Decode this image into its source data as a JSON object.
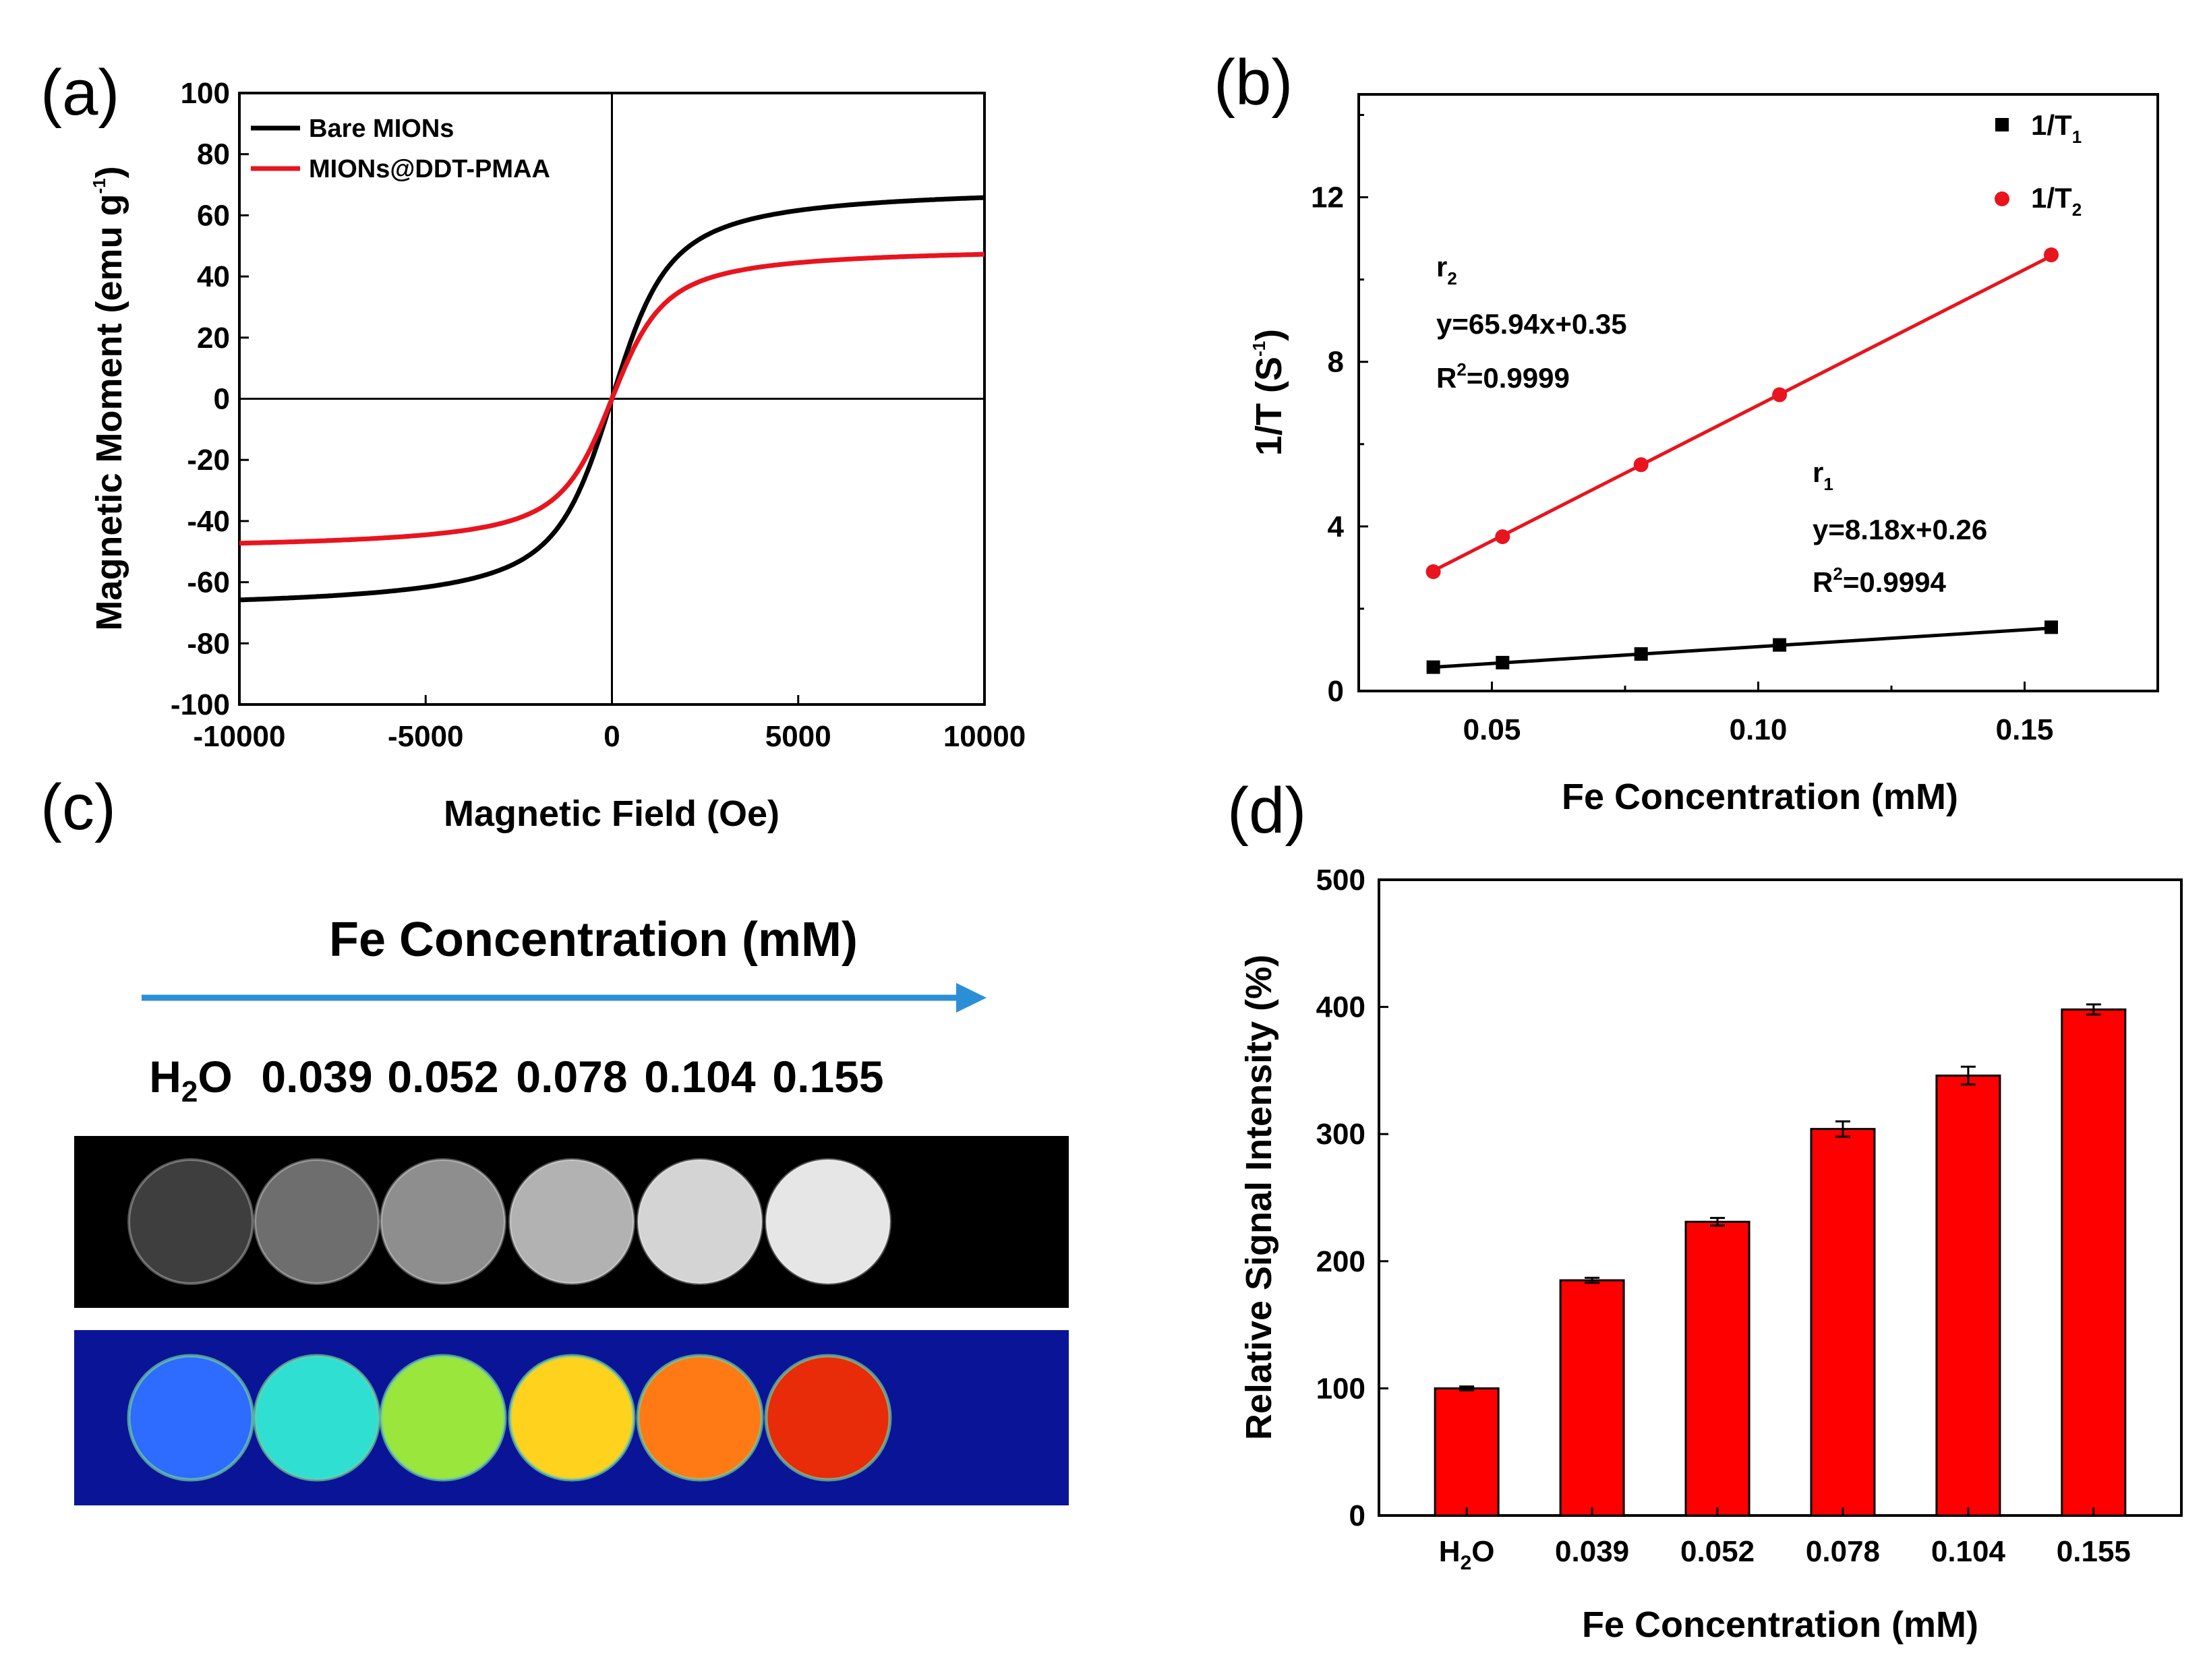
{
  "panels": {
    "a": "(a)",
    "b": "(b)",
    "c": "(c)",
    "d": "(d)"
  },
  "chart_data": [
    {
      "id": "a",
      "type": "line",
      "title": "",
      "xlabel": "Magnetic Field (Oe)",
      "ylabel": "Magnetic Moment (emu g",
      "ylabel_sup": "-1",
      "ylabel_end": ")",
      "xlim": [
        -10000,
        10000
      ],
      "ylim": [
        -100,
        100
      ],
      "xticks": [
        -10000,
        -5000,
        0,
        5000,
        10000
      ],
      "yticks": [
        -100,
        -80,
        -60,
        -40,
        -20,
        0,
        20,
        40,
        60,
        80,
        100
      ],
      "legend_position": "top-left",
      "series": [
        {
          "name": "Bare MIONs",
          "color": "#000000",
          "ms": 70,
          "h0": 600,
          "curve": "langevin"
        },
        {
          "name": "MIONs@DDT-PMAA",
          "color": "#e8141e",
          "ms": 50,
          "h0": 550,
          "curve": "langevin"
        }
      ]
    },
    {
      "id": "b",
      "type": "scatter",
      "xlabel": "Fe Concentration (mM)",
      "ylabel": "1/T (S",
      "ylabel_sup": "-1",
      "ylabel_end": ")",
      "xlim": [
        0.025,
        0.175
      ],
      "ylim": [
        0,
        14.5
      ],
      "xticks": [
        0.05,
        0.1,
        0.15
      ],
      "xtick_labels": [
        "0.05",
        "0.10",
        "0.15"
      ],
      "yticks": [
        0,
        4,
        8,
        12
      ],
      "legend_position": "top-right",
      "series": [
        {
          "name": "1/T",
          "sub": "1",
          "marker": "square",
          "color": "#000000",
          "x": [
            0.039,
            0.052,
            0.078,
            0.104,
            0.155
          ],
          "y": [
            0.58,
            0.69,
            0.9,
            1.12,
            1.55
          ],
          "fit": {
            "slope": 8.18,
            "intercept": 0.26
          }
        },
        {
          "name": "1/T",
          "sub": "2",
          "marker": "circle",
          "color": "#e8141e",
          "x": [
            0.039,
            0.052,
            0.078,
            0.104,
            0.155
          ],
          "y": [
            2.9,
            3.75,
            5.5,
            7.2,
            10.6
          ],
          "fit": {
            "slope": 65.94,
            "intercept": 0.35
          }
        }
      ],
      "annotations": {
        "r2": {
          "r": "r",
          "sub": "2",
          "eq": "y=65.94x+0.35",
          "R": "R",
          "sup": "2",
          "val": "=0.9999"
        },
        "r1": {
          "r": "r",
          "sub": "1",
          "eq": "y=8.18x+0.26",
          "R": "R",
          "sup": "2",
          "val": "=0.9994"
        }
      }
    },
    {
      "id": "d",
      "type": "bar",
      "xlabel": "Fe Concentration (mM)",
      "ylabel": "Relative Signal Intensity (%)",
      "ylim": [
        0,
        500
      ],
      "yticks": [
        0,
        100,
        200,
        300,
        400,
        500
      ],
      "categories": [
        "H2O",
        "0.039",
        "0.052",
        "0.078",
        "0.104",
        "0.155"
      ],
      "values": [
        100,
        185,
        231,
        304,
        346,
        398
      ],
      "errors": [
        1.5,
        2,
        3,
        6,
        7,
        4
      ],
      "color": "#ff0000"
    }
  ],
  "panel_c": {
    "title": "Fe Concentration (mM)",
    "labels": [
      "H",
      "0.039",
      "0.052",
      "0.078",
      "0.104",
      "0.155"
    ],
    "label0_sub": "2",
    "label0_end": "O",
    "gray_levels": [
      "#3e3e3e",
      "#6e6e6e",
      "#8e8e8e",
      "#b2b2b2",
      "#d4d4d4",
      "#e6e6e6"
    ],
    "heat_colors": [
      "#2e6bff",
      "#2fe0d2",
      "#9ae63c",
      "#ffd21e",
      "#ff7a14",
      "#e82b08"
    ],
    "arrow_color": "#2b8fd8"
  }
}
